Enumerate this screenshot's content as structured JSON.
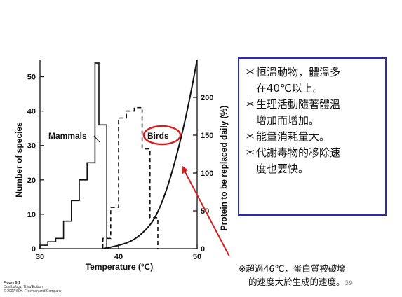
{
  "chart_data": {
    "type": "line",
    "figure_credit": [
      "Figure 6-1",
      "Ornithology, Third Edition",
      "© 2007 W.H. Freeman and Company"
    ],
    "xlabel": "Temperature (°C)",
    "ylabel_left": "Number of species",
    "ylabel_right": "Protein to be replaced daily (%)",
    "xlim": [
      30,
      50
    ],
    "ylim_left": [
      0,
      55
    ],
    "ylim_right": [
      0,
      250
    ],
    "x_ticks": [
      30,
      40,
      50
    ],
    "y_ticks_left": [
      0,
      10,
      20,
      30,
      40,
      50
    ],
    "y_ticks_right": [
      0,
      50,
      100,
      150,
      200
    ],
    "series": [
      {
        "name": "Mammals",
        "style": "solid-step",
        "bins": [
          {
            "x0": 30,
            "x1": 31,
            "value": 1
          },
          {
            "x0": 31,
            "x1": 32,
            "value": 2
          },
          {
            "x0": 32,
            "x1": 33,
            "value": 3
          },
          {
            "x0": 33,
            "x1": 34,
            "value": 8
          },
          {
            "x0": 34,
            "x1": 35,
            "value": 14
          },
          {
            "x0": 35,
            "x1": 36,
            "value": 20
          },
          {
            "x0": 36,
            "x1": 37,
            "value": 25
          },
          {
            "x0": 37,
            "x1": 37.5,
            "value": 54
          },
          {
            "x0": 37.5,
            "x1": 38.5,
            "value": 36
          },
          {
            "x0": 38.5,
            "x1": 39,
            "value": 0
          }
        ]
      },
      {
        "name": "Birds",
        "style": "dashed-step",
        "bins": [
          {
            "x0": 38,
            "x1": 39,
            "value": 3
          },
          {
            "x0": 39,
            "x1": 40,
            "value": 12
          },
          {
            "x0": 40,
            "x1": 41,
            "value": 38
          },
          {
            "x0": 41,
            "x1": 42,
            "value": 40
          },
          {
            "x0": 42,
            "x1": 43,
            "value": 41
          },
          {
            "x0": 43,
            "x1": 44,
            "value": 29
          },
          {
            "x0": 44,
            "x1": 45,
            "value": 9
          }
        ]
      },
      {
        "name": "",
        "style": "solid-curve",
        "axis": "right",
        "x": [
          38,
          40,
          42,
          44,
          45,
          46,
          47,
          48,
          49,
          50
        ],
        "y": [
          0,
          4,
          11,
          30,
          48,
          74,
          108,
          148,
          195,
          250
        ]
      }
    ]
  },
  "annotation": {
    "bullets": [
      [
        "恒溫動物，體溫多",
        "在40℃以上。"
      ],
      [
        "生理活動隨著體溫",
        "增加而增加。"
      ],
      [
        "能量消耗量大。"
      ],
      [
        "代謝毒物的移除速",
        "度也要快。"
      ]
    ],
    "bullet_symbol": "＊",
    "footnote_symbol": "※",
    "footnote": [
      "超過46℃，蛋白質被破壞",
      "的速度大於生成的速度。"
    ],
    "slide_number": "59"
  },
  "colors": {
    "box_border": "#2a2ab8",
    "highlight": "#d42020",
    "ink": "#111111"
  }
}
